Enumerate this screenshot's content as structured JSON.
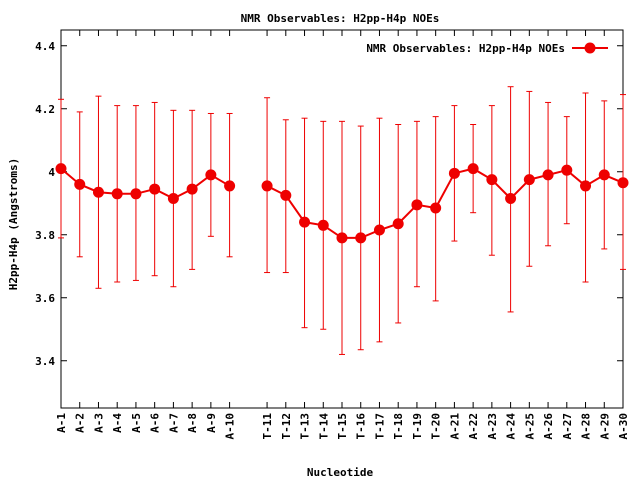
{
  "chart_data": {
    "type": "line",
    "title": "NMR Observables: H2pp-H4p NOEs",
    "xlabel": "Nucleotide",
    "ylabel": "H2pp-H4p (Angstroms)",
    "ylim": [
      3.25,
      4.45
    ],
    "yticks": [
      "3.4",
      "3.6",
      "3.8",
      "4",
      "4.2",
      "4.4"
    ],
    "grid": false,
    "legend_position": "top-right",
    "series": [
      {
        "name": "NMR Observables: H2pp-H4p NOEs",
        "color": "#ee0000",
        "points": [
          {
            "category": "A-1",
            "value": 4.01,
            "err_low": 3.79,
            "err_high": 4.23
          },
          {
            "category": "A-2",
            "value": 3.96,
            "err_low": 3.73,
            "err_high": 4.19
          },
          {
            "category": "A-3",
            "value": 3.935,
            "err_low": 3.63,
            "err_high": 4.24
          },
          {
            "category": "A-4",
            "value": 3.93,
            "err_low": 3.65,
            "err_high": 4.21
          },
          {
            "category": "A-5",
            "value": 3.93,
            "err_low": 3.655,
            "err_high": 4.21
          },
          {
            "category": "A-6",
            "value": 3.945,
            "err_low": 3.67,
            "err_high": 4.22
          },
          {
            "category": "A-7",
            "value": 3.915,
            "err_low": 3.635,
            "err_high": 4.195
          },
          {
            "category": "A-8",
            "value": 3.945,
            "err_low": 3.69,
            "err_high": 4.195
          },
          {
            "category": "A-9",
            "value": 3.99,
            "err_low": 3.795,
            "err_high": 4.185
          },
          {
            "category": "A-10",
            "value": 3.955,
            "err_low": 3.73,
            "err_high": 4.185
          },
          {
            "category": "T-11",
            "value": 3.955,
            "err_low": 3.68,
            "err_high": 4.235
          },
          {
            "category": "T-12",
            "value": 3.925,
            "err_low": 3.68,
            "err_high": 4.165
          },
          {
            "category": "T-13",
            "value": 3.84,
            "err_low": 3.505,
            "err_high": 4.17
          },
          {
            "category": "T-14",
            "value": 3.83,
            "err_low": 3.5,
            "err_high": 4.16
          },
          {
            "category": "T-15",
            "value": 3.79,
            "err_low": 3.42,
            "err_high": 4.16
          },
          {
            "category": "T-16",
            "value": 3.79,
            "err_low": 3.435,
            "err_high": 4.145
          },
          {
            "category": "T-17",
            "value": 3.815,
            "err_low": 3.46,
            "err_high": 4.17
          },
          {
            "category": "T-18",
            "value": 3.835,
            "err_low": 3.52,
            "err_high": 4.15
          },
          {
            "category": "T-19",
            "value": 3.895,
            "err_low": 3.635,
            "err_high": 4.16
          },
          {
            "category": "T-20",
            "value": 3.885,
            "err_low": 3.59,
            "err_high": 4.175
          },
          {
            "category": "A-21",
            "value": 3.995,
            "err_low": 3.78,
            "err_high": 4.21
          },
          {
            "category": "A-22",
            "value": 4.01,
            "err_low": 3.87,
            "err_high": 4.15
          },
          {
            "category": "A-23",
            "value": 3.975,
            "err_low": 3.735,
            "err_high": 4.21
          },
          {
            "category": "A-24",
            "value": 3.915,
            "err_low": 3.555,
            "err_high": 4.27
          },
          {
            "category": "A-25",
            "value": 3.975,
            "err_low": 3.7,
            "err_high": 4.255
          },
          {
            "category": "A-26",
            "value": 3.99,
            "err_low": 3.765,
            "err_high": 4.22
          },
          {
            "category": "A-27",
            "value": 4.005,
            "err_low": 3.835,
            "err_high": 4.175
          },
          {
            "category": "A-28",
            "value": 3.955,
            "err_low": 3.65,
            "err_high": 4.25
          },
          {
            "category": "A-29",
            "value": 3.99,
            "err_low": 3.755,
            "err_high": 4.225
          },
          {
            "category": "A-30",
            "value": 3.965,
            "err_low": 3.69,
            "err_high": 4.245
          }
        ]
      }
    ]
  }
}
